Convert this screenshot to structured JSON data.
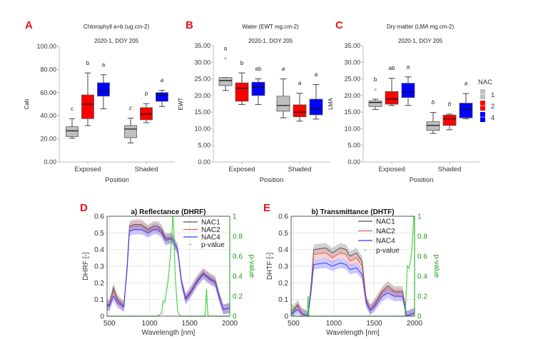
{
  "chart_data": [
    {
      "type": "box",
      "panel_label": "A",
      "title": "Chlorophyll a+b (ug.cm-2)",
      "subtitle": "2020-1, DOY 205",
      "xlabel": "Position",
      "ylabel": "Cab",
      "ylim": [
        0,
        100
      ],
      "yticks": [
        "0.00",
        "20.00",
        "40.00",
        "60.00",
        "80.00",
        "100.00"
      ],
      "categories": [
        "Exposed",
        "Shaded"
      ],
      "series": [
        {
          "name": "1",
          "color": "#bfbfbf",
          "boxes": [
            {
              "whislo": 20.5,
              "q1": 22,
              "med": 27,
              "q3": 30.5,
              "whishi": 37.5,
              "outliers": [],
              "letter": "c"
            },
            {
              "whislo": 16.5,
              "q1": 21,
              "med": 28.5,
              "q3": 31.5,
              "whishi": 38,
              "outliers": [],
              "letter": "c"
            }
          ]
        },
        {
          "name": "2",
          "color": "#ff0000",
          "boxes": [
            {
              "whislo": 31.5,
              "q1": 37.5,
              "med": 50,
              "q3": 58,
              "whishi": 77,
              "outliers": [],
              "letter": "b"
            },
            {
              "whislo": 34,
              "q1": 36.5,
              "med": 41.5,
              "q3": 47,
              "whishi": 50.5,
              "outliers": [],
              "letter": "b"
            }
          ]
        },
        {
          "name": "4",
          "color": "#0000ff",
          "boxes": [
            {
              "whislo": 46,
              "q1": 57,
              "med": 61,
              "q3": 68.5,
              "whishi": 75.5,
              "outliers": [],
              "letter": "a"
            },
            {
              "whislo": 48,
              "q1": 52.5,
              "med": 58,
              "q3": 60,
              "whishi": 62,
              "outliers": [],
              "letter": "a"
            }
          ]
        }
      ]
    },
    {
      "type": "box",
      "panel_label": "B",
      "title": "Water  (EWT mg.cm-2)",
      "subtitle": "2020-1, DOY 205",
      "xlabel": "Position",
      "ylabel": "EWT",
      "ylim": [
        0,
        35
      ],
      "yticks": [
        "0.00",
        "5.00",
        "10.00",
        "15.00",
        "20.00",
        "25.00",
        "30.00",
        "35.00"
      ],
      "categories": [
        "Exposed",
        "Shaded"
      ],
      "series": [
        {
          "name": "1",
          "color": "#bfbfbf",
          "boxes": [
            {
              "whislo": 21.5,
              "q1": 23,
              "med": 24.5,
              "q3": 25.4,
              "whishi": 25.4,
              "outliers": [
                31.2
              ],
              "letter": "a"
            },
            {
              "whislo": 13.3,
              "q1": 15.3,
              "med": 17,
              "q3": 19.8,
              "whishi": 25,
              "outliers": [],
              "letter": "a"
            }
          ]
        },
        {
          "name": "2",
          "color": "#ff0000",
          "boxes": [
            {
              "whislo": 17.3,
              "q1": 18.3,
              "med": 22.2,
              "q3": 23.8,
              "whishi": 26.8,
              "outliers": [],
              "letter": "b"
            },
            {
              "whislo": 12.3,
              "q1": 13.6,
              "med": 15,
              "q3": 17.2,
              "whishi": 20.7,
              "outliers": [],
              "letter": "a"
            }
          ]
        },
        {
          "name": "4",
          "color": "#0000ff",
          "boxes": [
            {
              "whislo": 17.3,
              "q1": 20,
              "med": 22.6,
              "q3": 24,
              "whishi": 25,
              "outliers": [],
              "letter": "ab"
            },
            {
              "whislo": 12.9,
              "q1": 14.2,
              "med": 16,
              "q3": 18.9,
              "whishi": 23.3,
              "outliers": [],
              "letter": "a"
            }
          ]
        }
      ]
    },
    {
      "type": "box",
      "panel_label": "C",
      "title": "Dry matter  (LMA mg.cm-2)",
      "subtitle": "2020-1, DOY 205",
      "xlabel": "Position",
      "ylabel": "LMA",
      "ylim": [
        0,
        35
      ],
      "yticks": [
        "0.00",
        "5.00",
        "10.00",
        "15.00",
        "20.00",
        "25.00",
        "30.00",
        "35.00"
      ],
      "categories": [
        "Exposed",
        "Shaded"
      ],
      "legend": {
        "title": "NAC",
        "entries": [
          "1",
          "2",
          "4"
        ],
        "placement": "right"
      },
      "series": [
        {
          "name": "1",
          "color": "#bfbfbf",
          "boxes": [
            {
              "whislo": 15.8,
              "q1": 16.7,
              "med": 17.9,
              "q3": 18.4,
              "whishi": 18.9,
              "outliers": [
                21.8
              ],
              "letter": "b"
            },
            {
              "whislo": 8.6,
              "q1": 9.5,
              "med": 11,
              "q3": 12.1,
              "whishi": 14.9,
              "outliers": [],
              "letter": "b"
            }
          ]
        },
        {
          "name": "2",
          "color": "#ff0000",
          "boxes": [
            {
              "whislo": 17,
              "q1": 17.4,
              "med": 18.9,
              "q3": 21.2,
              "whishi": 25.2,
              "outliers": [],
              "letter": "ab"
            },
            {
              "whislo": 9.7,
              "q1": 11,
              "med": 13,
              "q3": 14.1,
              "whishi": 14.4,
              "outliers": [],
              "letter": "b"
            }
          ]
        },
        {
          "name": "4",
          "color": "#0000ff",
          "boxes": [
            {
              "whislo": 17,
              "q1": 19.4,
              "med": 21,
              "q3": 23.7,
              "whishi": 25.6,
              "outliers": [],
              "letter": "a"
            },
            {
              "whislo": 13,
              "q1": 13.3,
              "med": 15.8,
              "q3": 17.7,
              "whishi": 20.6,
              "outliers": [],
              "letter": "a"
            }
          ]
        }
      ]
    },
    {
      "type": "line",
      "panel_label": "D",
      "title": "a) Reflectance (DHRF)",
      "xlabel": "Wavelength [nm]",
      "ylabel": "DHRF [-]",
      "y2label": "p-value",
      "xlim": [
        470,
        2000
      ],
      "ylim": [
        0,
        0.6
      ],
      "y2lim": [
        0,
        1
      ],
      "xticks": [
        "500",
        "1000",
        "1500",
        "2000"
      ],
      "yticks": [
        "0",
        "0.1",
        "0.2",
        "0.3",
        "0.4",
        "0.5",
        "0.6"
      ],
      "y2ticks": [
        "0",
        "0.2",
        "0.4",
        "0.6",
        "0.8",
        "1"
      ],
      "grid": true,
      "legend_placement": "top-right",
      "x": [
        470,
        500,
        550,
        600,
        680,
        720,
        750,
        800,
        900,
        980,
        1050,
        1100,
        1150,
        1200,
        1280,
        1350,
        1400,
        1450,
        1500,
        1600,
        1670,
        1750,
        1820,
        1870,
        1920,
        2000
      ],
      "series": [
        {
          "name": "NAC1",
          "color": "#555555",
          "band_color": "#9a9a9a",
          "ci": 0.03,
          "y": [
            0.07,
            0.07,
            0.17,
            0.1,
            0.06,
            0.3,
            0.54,
            0.55,
            0.55,
            0.52,
            0.54,
            0.54,
            0.52,
            0.47,
            0.47,
            0.4,
            0.2,
            0.11,
            0.14,
            0.22,
            0.26,
            0.23,
            0.21,
            0.12,
            0.04,
            0.05
          ]
        },
        {
          "name": "NAC2",
          "color": "#e06060",
          "band_color": "#f0a0a0",
          "ci": 0.03,
          "y": [
            0.065,
            0.065,
            0.15,
            0.09,
            0.06,
            0.29,
            0.53,
            0.54,
            0.54,
            0.51,
            0.53,
            0.53,
            0.51,
            0.46,
            0.47,
            0.4,
            0.2,
            0.105,
            0.135,
            0.215,
            0.255,
            0.225,
            0.205,
            0.115,
            0.04,
            0.05
          ]
        },
        {
          "name": "NAC4",
          "color": "#3a3aff",
          "band_color": "#8c8cff",
          "ci": 0.03,
          "y": [
            0.06,
            0.06,
            0.12,
            0.08,
            0.055,
            0.28,
            0.51,
            0.52,
            0.52,
            0.5,
            0.52,
            0.52,
            0.5,
            0.455,
            0.465,
            0.4,
            0.2,
            0.1,
            0.13,
            0.21,
            0.25,
            0.22,
            0.2,
            0.11,
            0.04,
            0.05
          ]
        }
      ],
      "pvalue": {
        "name": "p-value",
        "color": "#22cc22",
        "x": [
          470,
          1100,
          1150,
          1170,
          1190,
          1230,
          1260,
          1280,
          1290,
          1300,
          1320,
          1350,
          1380,
          1690,
          1700,
          1710,
          1720,
          1730,
          2000
        ],
        "y": [
          0,
          0,
          0.03,
          0.15,
          0.14,
          0.35,
          0.6,
          0.85,
          1.0,
          0.9,
          0.4,
          0.05,
          0,
          0,
          0.1,
          0.27,
          0.1,
          0,
          0
        ]
      }
    },
    {
      "type": "line",
      "panel_label": "E",
      "title": "b) Transmittance (DHTF)",
      "xlabel": "Wavelength [nm]",
      "ylabel": "DHTF [-]",
      "y2label": "p-value",
      "xlim": [
        470,
        2000
      ],
      "ylim": [
        0,
        0.6
      ],
      "y2lim": [
        0,
        1
      ],
      "xticks": [
        "500",
        "1000",
        "1500",
        "2000"
      ],
      "yticks": [
        "0",
        "0.1",
        "0.2",
        "0.3",
        "0.4",
        "0.5",
        "0.6"
      ],
      "y2ticks": [
        "0",
        "0.2",
        "0.4",
        "0.6",
        "0.8",
        "1"
      ],
      "grid": true,
      "legend_placement": "top-right",
      "x": [
        470,
        550,
        600,
        680,
        720,
        750,
        900,
        980,
        1080,
        1150,
        1200,
        1280,
        1350,
        1400,
        1450,
        1500,
        1600,
        1670,
        1750,
        1850,
        1880,
        1900,
        2000
      ],
      "series": [
        {
          "name": "NAC1",
          "color": "#555555",
          "band_color": "#9a9a9a",
          "ci": 0.03,
          "y": [
            0.01,
            0.07,
            0.02,
            0,
            0.2,
            0.4,
            0.41,
            0.38,
            0.41,
            0.4,
            0.36,
            0.38,
            0.33,
            0.1,
            0.04,
            0.07,
            0.15,
            0.18,
            0.15,
            0.15,
            0.07,
            0,
            0.02
          ]
        },
        {
          "name": "NAC2",
          "color": "#e06060",
          "band_color": "#f0a0a0",
          "ci": 0.03,
          "y": [
            0.01,
            0.06,
            0.02,
            0,
            0.18,
            0.37,
            0.38,
            0.35,
            0.38,
            0.37,
            0.33,
            0.35,
            0.3,
            0.09,
            0.04,
            0.065,
            0.14,
            0.165,
            0.14,
            0.14,
            0.065,
            0,
            0.02
          ]
        },
        {
          "name": "NAC4",
          "color": "#3a3aff",
          "band_color": "#8c8cff",
          "ci": 0.03,
          "y": [
            0.01,
            0.04,
            0.015,
            0,
            0.16,
            0.31,
            0.32,
            0.3,
            0.32,
            0.31,
            0.28,
            0.29,
            0.25,
            0.08,
            0.035,
            0.055,
            0.12,
            0.14,
            0.12,
            0.12,
            0.055,
            0,
            0.02
          ]
        }
      ],
      "pvalue": {
        "name": "p-value",
        "color": "#22cc22",
        "x": [
          470,
          490,
          500,
          660,
          670,
          680,
          690,
          1880,
          1890,
          1900,
          1910,
          1930,
          1950,
          1970,
          1990,
          2000
        ],
        "y": [
          0.12,
          0.1,
          0,
          0,
          0.03,
          0.2,
          0,
          0,
          0.1,
          0.3,
          0.5,
          0.48,
          0.55,
          0.7,
          1.0,
          1.0
        ]
      }
    }
  ]
}
